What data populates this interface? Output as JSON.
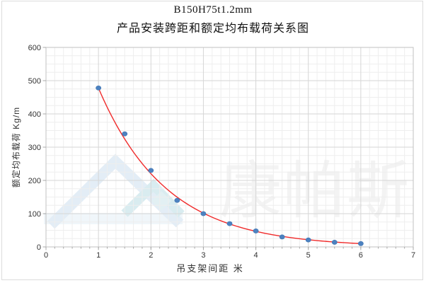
{
  "window": {
    "background": "#ffffff",
    "frame_border_color": "#dcdcdc"
  },
  "chart_data": {
    "type": "scatter",
    "title": "B150H75t1.2mm",
    "subtitle": "产品安装跨距和额定均布载荷关系图",
    "xlabel": "吊支架间距  米",
    "ylabel": "额定均布载荷 Kg/m",
    "x": [
      1,
      1.5,
      2,
      2.5,
      3,
      3.5,
      4,
      4.5,
      5,
      5.5,
      6
    ],
    "values": [
      478,
      340,
      230,
      140,
      100,
      70,
      48,
      30,
      21,
      14,
      10
    ],
    "series_name": "额定均布载荷",
    "xlim": [
      0,
      7
    ],
    "ylim": [
      0,
      600
    ],
    "x_ticks": [
      "0",
      "1",
      "2",
      "3",
      "4",
      "5",
      "6",
      "7"
    ],
    "y_ticks": [
      "0",
      "100",
      "200",
      "300",
      "400",
      "500",
      "600"
    ],
    "x_minor_divisions_per_unit": 6,
    "y_minor_step": 25,
    "grid": "major+minor",
    "legend": "none",
    "trendline": {
      "type": "exponential",
      "a": 1036,
      "k": 0.774,
      "x_start": 1,
      "x_end": 6
    },
    "colors": {
      "point": "#4d82c0",
      "point_edge": "#3f74b2",
      "trend_line": "#f02b2b",
      "grid_minor": "#eeeeee",
      "grid_major": "#d6d6d6",
      "axis": "#c2c2c2",
      "tick": "#a8a8a8",
      "tick_text": "#333333"
    }
  },
  "watermark": {
    "text": "康帕斯",
    "text_color": "#f3f3f3",
    "logo": {
      "mountain_color": "#e3edf6",
      "peak_color": "#d9ecf0",
      "diamond_color": "#e2f0f3",
      "band_color": "#eaf2f8"
    }
  }
}
